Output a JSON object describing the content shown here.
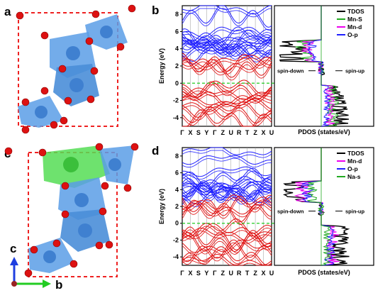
{
  "panels": {
    "a": {
      "label": "a"
    },
    "b": {
      "label": "b"
    },
    "c": {
      "label": "c"
    },
    "d": {
      "label": "d"
    }
  },
  "axes_labels": {
    "c_axis": "c",
    "b_axis": "b"
  },
  "colors": {
    "spin_up_bands": "#1f1fff",
    "spin_down_bands": "#e01010",
    "fermi_line": "#22cc22",
    "polyhedra_mn": "#5b9ee6",
    "polyhedra_na": "#55dd55",
    "oxygen_atoms": "#dd1111",
    "cell_outline": "#ee2222"
  },
  "chart_data": [
    {
      "panel": "b",
      "type": "line",
      "subtype": "band-structure",
      "ylabel": "Energy (eV)",
      "ylim": [
        -5,
        9
      ],
      "yticks": [
        -4,
        -2,
        0,
        2,
        4,
        6,
        8
      ],
      "xticks": [
        "Γ",
        "X",
        "S",
        "Y",
        "Γ",
        "Z",
        "U",
        "R",
        "T",
        "Z",
        "X",
        "U"
      ],
      "series": [
        {
          "name": "",
          "color": "#1f1fff",
          "values": [
            4.3,
            4.6,
            4.8,
            5.0,
            3.6,
            3.8,
            4.1,
            4.4,
            5.2,
            5.6,
            6.0,
            7.8,
            8.7
          ]
        },
        {
          "name": "",
          "color": "#e01010",
          "values": [
            1.9,
            2.1,
            2.4,
            2.6,
            -0.4,
            -0.8,
            -1.2,
            -1.6,
            -2.0,
            -2.5,
            -3.0,
            -3.6,
            -4.2
          ]
        }
      ],
      "fermi_level": 0
    },
    {
      "panel": "b",
      "type": "line",
      "subtype": "pdos",
      "xlabel": "PDOS (states/eV)",
      "legend": [
        "TDOS",
        "Mn-S",
        "Mn-d",
        "O-p"
      ],
      "legend_colors": [
        "#000000",
        "#22aa22",
        "#ee00ee",
        "#1f1fff"
      ],
      "legend_placement": "top-right",
      "annotations": [
        "spin-down",
        "spin-up"
      ]
    },
    {
      "panel": "d",
      "type": "line",
      "subtype": "band-structure",
      "ylabel": "Energy (eV)",
      "ylim": [
        -5,
        9
      ],
      "yticks": [
        -4,
        -2,
        0,
        2,
        4,
        6,
        8
      ],
      "xticks": [
        "Γ",
        "X",
        "S",
        "Y",
        "Γ",
        "Z",
        "U",
        "R",
        "T",
        "Z",
        "X",
        "U"
      ],
      "series": [
        {
          "name": "",
          "color": "#1f1fff",
          "values": [
            3.7,
            4.0,
            4.3,
            4.5,
            3.2,
            3.5,
            3.9,
            4.2,
            5.0,
            5.5,
            6.2,
            7.6,
            8.6
          ]
        },
        {
          "name": "",
          "color": "#e01010",
          "values": [
            1.5,
            1.8,
            2.2,
            2.5,
            -0.5,
            -0.9,
            -1.3,
            -1.8,
            -2.3,
            -2.8,
            -3.3,
            -3.9,
            -4.4
          ]
        }
      ],
      "fermi_level": 0
    },
    {
      "panel": "d",
      "type": "line",
      "subtype": "pdos",
      "xlabel": "PDOS (states/eV)",
      "legend": [
        "TDOS",
        "Mn-d",
        "O-p",
        "Na-s"
      ],
      "legend_colors": [
        "#000000",
        "#ee00ee",
        "#1f1fff",
        "#22aa22"
      ],
      "legend_placement": "top-right",
      "annotations": [
        "spin-down",
        "spin-up"
      ]
    }
  ]
}
